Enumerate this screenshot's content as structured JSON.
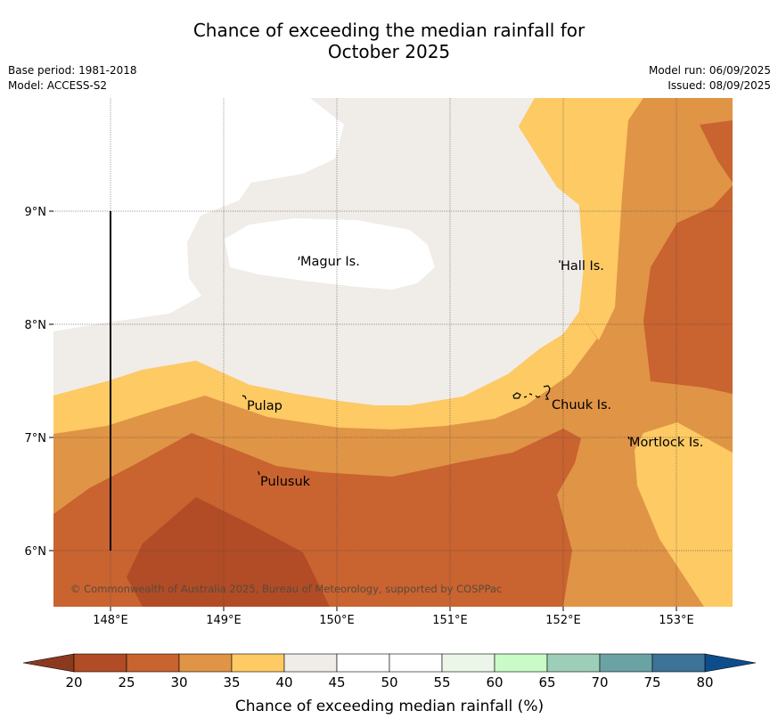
{
  "title_line1": "Chance of exceeding the median rainfall for",
  "title_line2": "October 2025",
  "base_period": "Base period: 1981-2018",
  "model": "Model: ACCESS-S2",
  "model_run": "Model run: 06/09/2025",
  "issued": "Issued: 08/09/2025",
  "copyright": "© Commonwealth of Australia 2025, Bureau of Meteorology, supported by COSPPac",
  "lat_labels": [
    "9°N",
    "8°N",
    "7°N",
    "6°N"
  ],
  "lon_labels": [
    "148°E",
    "149°E",
    "150°E",
    "151°E",
    "152°E",
    "153°E"
  ],
  "places": {
    "magur": "Magur Is.",
    "hall": "Hall Is.",
    "pulap": "Pulap",
    "chuuk": "Chuuk Is.",
    "mortlock": "Mortlock Is.",
    "pulusuk": "Pulusuk"
  },
  "colorbar": {
    "label": "Chance of exceeding median rainfall (%)",
    "ticks": [
      "20",
      "25",
      "30",
      "35",
      "40",
      "45",
      "50",
      "55",
      "60",
      "65",
      "70",
      "75",
      "80"
    ],
    "colors": [
      "#b14c26",
      "#c96330",
      "#e09446",
      "#fdca64",
      "#f0ece8",
      "#ffffff",
      "#ffffff",
      "#ebf5e8",
      "#c9fbc9",
      "#9dcfb8",
      "#6ba3a5",
      "#3c7396"
    ],
    "under_color": "#8b3a1f",
    "over_color": "#0d4d8c"
  }
}
